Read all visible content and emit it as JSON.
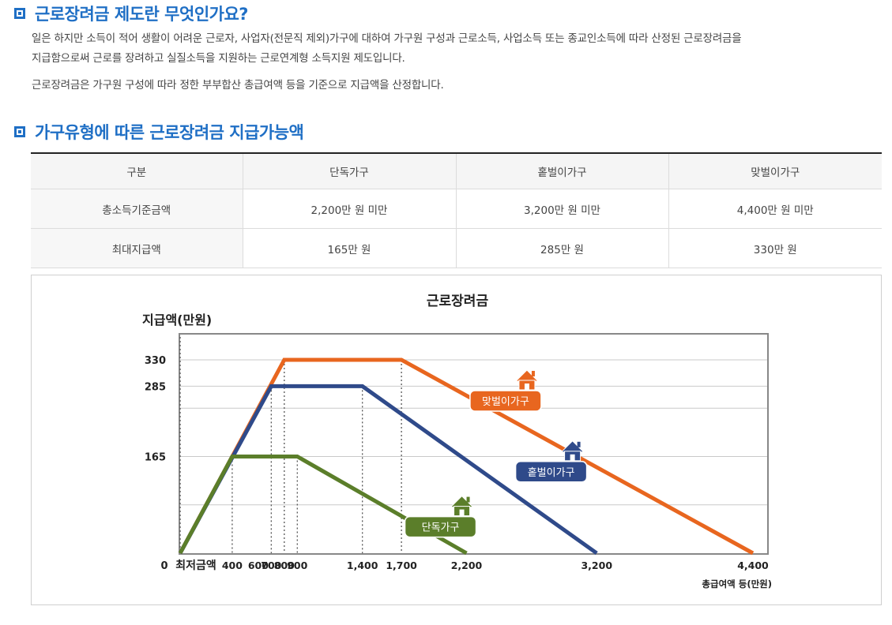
{
  "section1": {
    "title": "근로장려금 제도란 무엇인가요?",
    "para1_line1": "일은 하지만 소득이 적어 생활이 어려운 근로자, 사업자(전문직 제외)가구에 대하여 가구원 구성과 근로소득, 사업소득 또는 종교인소득에 따라 산정된 근로장려금을",
    "para1_line2": "지급함으로써 근로를 장려하고 실질소득을 지원하는 근로연계형 소득지원 제도입니다.",
    "para2": "근로장려금은 가구원 구성에 따라 정한 부부합산 총급여액 등을 기준으로 지급액을 산정합니다."
  },
  "section2": {
    "title": "가구유형에 따른 근로장려금 지급가능액",
    "headers": [
      "구분",
      "단독가구",
      "홑벌이가구",
      "맞벌이가구"
    ],
    "rows": [
      {
        "label": "총소득기준금액",
        "values": [
          "2,200만 원 미만",
          "3,200만 원 미만",
          "4,400만 원 미만"
        ]
      },
      {
        "label": "최대지급액",
        "values": [
          "165만 원",
          "285만 원",
          "330만 원"
        ]
      }
    ]
  },
  "chart_data": {
    "type": "line",
    "title": "근로장려금",
    "ylabel": "지급액(만원)",
    "xlabel": "총급여액 등(만원)",
    "origin_label": "0",
    "min_label": "최저금액",
    "xlim": [
      0,
      4400
    ],
    "ylim": [
      0,
      330
    ],
    "x_ticks": [
      {
        "value": 400,
        "label": "400"
      },
      {
        "value": 600,
        "label": "600"
      },
      {
        "value": 700,
        "label": "700"
      },
      {
        "value": 800,
        "label": "800"
      },
      {
        "value": 900,
        "label": "900"
      },
      {
        "value": 1400,
        "label": "1,400"
      },
      {
        "value": 1700,
        "label": "1,700"
      },
      {
        "value": 2200,
        "label": "2,200"
      },
      {
        "value": 3200,
        "label": "3,200"
      },
      {
        "value": 4400,
        "label": "4,400"
      }
    ],
    "y_ticks": [
      {
        "value": 165,
        "label": "165"
      },
      {
        "value": 285,
        "label": "285"
      },
      {
        "value": 330,
        "label": "330"
      }
    ],
    "grid": true,
    "series": [
      {
        "name": "맞벌이가구",
        "color": "#e8661f",
        "label_anchor": [
          2500,
          260
        ],
        "x": [
          0,
          800,
          1700,
          4400
        ],
        "y": [
          0,
          330,
          330,
          0
        ]
      },
      {
        "name": "홑벌이가구",
        "color": "#2f4a8a",
        "label_anchor": [
          2850,
          139
        ],
        "x": [
          0,
          700,
          1400,
          3200
        ],
        "y": [
          0,
          285,
          285,
          0
        ]
      },
      {
        "name": "단독가구",
        "color": "#5b7e2a",
        "label_anchor": [
          2000,
          45
        ],
        "x": [
          0,
          400,
          900,
          2200
        ],
        "y": [
          0,
          165,
          165,
          0
        ]
      }
    ]
  }
}
